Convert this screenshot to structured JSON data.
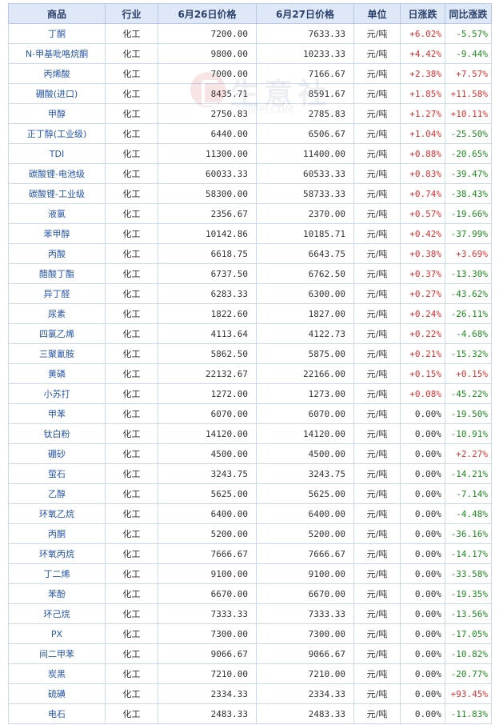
{
  "headers": [
    "商品",
    "行业",
    "6月26日价格",
    "6月27日价格",
    "单位",
    "日涨跌",
    "同比涨跌"
  ],
  "watermark": {
    "text": "生意社",
    "url": "100PPI.COM"
  },
  "rows": [
    {
      "name": "丁酮",
      "industry": "化工",
      "p1": "7200.00",
      "p2": "7633.33",
      "unit": "元/吨",
      "day": "+6.02%",
      "day_dir": "up",
      "yoy": "-5.57%",
      "yoy_dir": "down"
    },
    {
      "name": "N-甲基吡咯烷酮",
      "industry": "化工",
      "p1": "9800.00",
      "p2": "10233.33",
      "unit": "元/吨",
      "day": "+4.42%",
      "day_dir": "up",
      "yoy": "-9.44%",
      "yoy_dir": "down"
    },
    {
      "name": "丙烯酸",
      "industry": "化工",
      "p1": "7000.00",
      "p2": "7166.67",
      "unit": "元/吨",
      "day": "+2.38%",
      "day_dir": "up",
      "yoy": "+7.57%",
      "yoy_dir": "up"
    },
    {
      "name": "硼酸(进口)",
      "industry": "化工",
      "p1": "8435.71",
      "p2": "8591.67",
      "unit": "元/吨",
      "day": "+1.85%",
      "day_dir": "up",
      "yoy": "+11.58%",
      "yoy_dir": "up"
    },
    {
      "name": "甲醇",
      "industry": "化工",
      "p1": "2750.83",
      "p2": "2785.83",
      "unit": "元/吨",
      "day": "+1.27%",
      "day_dir": "up",
      "yoy": "+10.11%",
      "yoy_dir": "up"
    },
    {
      "name": "正丁醇(工业级)",
      "industry": "化工",
      "p1": "6440.00",
      "p2": "6506.67",
      "unit": "元/吨",
      "day": "+1.04%",
      "day_dir": "up",
      "yoy": "-25.50%",
      "yoy_dir": "down"
    },
    {
      "name": "TDI",
      "industry": "化工",
      "p1": "11300.00",
      "p2": "11400.00",
      "unit": "元/吨",
      "day": "+0.88%",
      "day_dir": "up",
      "yoy": "-20.65%",
      "yoy_dir": "down"
    },
    {
      "name": "碳酸锂-电池级",
      "industry": "化工",
      "p1": "60033.33",
      "p2": "60533.33",
      "unit": "元/吨",
      "day": "+0.83%",
      "day_dir": "up",
      "yoy": "-39.47%",
      "yoy_dir": "down"
    },
    {
      "name": "碳酸锂-工业级",
      "industry": "化工",
      "p1": "58300.00",
      "p2": "58733.33",
      "unit": "元/吨",
      "day": "+0.74%",
      "day_dir": "up",
      "yoy": "-38.43%",
      "yoy_dir": "down"
    },
    {
      "name": "液氯",
      "industry": "化工",
      "p1": "2356.67",
      "p2": "2370.00",
      "unit": "元/吨",
      "day": "+0.57%",
      "day_dir": "up",
      "yoy": "-19.66%",
      "yoy_dir": "down"
    },
    {
      "name": "苯甲醇",
      "industry": "化工",
      "p1": "10142.86",
      "p2": "10185.71",
      "unit": "元/吨",
      "day": "+0.42%",
      "day_dir": "up",
      "yoy": "-37.99%",
      "yoy_dir": "down"
    },
    {
      "name": "丙酸",
      "industry": "化工",
      "p1": "6618.75",
      "p2": "6643.75",
      "unit": "元/吨",
      "day": "+0.38%",
      "day_dir": "up",
      "yoy": "+3.69%",
      "yoy_dir": "up"
    },
    {
      "name": "醋酸丁酯",
      "industry": "化工",
      "p1": "6737.50",
      "p2": "6762.50",
      "unit": "元/吨",
      "day": "+0.37%",
      "day_dir": "up",
      "yoy": "-13.30%",
      "yoy_dir": "down"
    },
    {
      "name": "异丁醛",
      "industry": "化工",
      "p1": "6283.33",
      "p2": "6300.00",
      "unit": "元/吨",
      "day": "+0.27%",
      "day_dir": "up",
      "yoy": "-43.62%",
      "yoy_dir": "down"
    },
    {
      "name": "尿素",
      "industry": "化工",
      "p1": "1822.60",
      "p2": "1827.00",
      "unit": "元/吨",
      "day": "+0.24%",
      "day_dir": "up",
      "yoy": "-26.11%",
      "yoy_dir": "down"
    },
    {
      "name": "四氯乙烯",
      "industry": "化工",
      "p1": "4113.64",
      "p2": "4122.73",
      "unit": "元/吨",
      "day": "+0.22%",
      "day_dir": "up",
      "yoy": "-4.68%",
      "yoy_dir": "down"
    },
    {
      "name": "三聚氰胺",
      "industry": "化工",
      "p1": "5862.50",
      "p2": "5875.00",
      "unit": "元/吨",
      "day": "+0.21%",
      "day_dir": "up",
      "yoy": "-15.32%",
      "yoy_dir": "down"
    },
    {
      "name": "黄磷",
      "industry": "化工",
      "p1": "22132.67",
      "p2": "22166.00",
      "unit": "元/吨",
      "day": "+0.15%",
      "day_dir": "up",
      "yoy": "+0.15%",
      "yoy_dir": "up"
    },
    {
      "name": "小苏打",
      "industry": "化工",
      "p1": "1272.00",
      "p2": "1273.00",
      "unit": "元/吨",
      "day": "+0.08%",
      "day_dir": "up",
      "yoy": "-45.22%",
      "yoy_dir": "down"
    },
    {
      "name": "甲苯",
      "industry": "化工",
      "p1": "6070.00",
      "p2": "6070.00",
      "unit": "元/吨",
      "day": "0.00%",
      "day_dir": "flat",
      "yoy": "-19.50%",
      "yoy_dir": "down"
    },
    {
      "name": "钛白粉",
      "industry": "化工",
      "p1": "14120.00",
      "p2": "14120.00",
      "unit": "元/吨",
      "day": "0.00%",
      "day_dir": "flat",
      "yoy": "-10.91%",
      "yoy_dir": "down"
    },
    {
      "name": "硼砂",
      "industry": "化工",
      "p1": "4500.00",
      "p2": "4500.00",
      "unit": "元/吨",
      "day": "0.00%",
      "day_dir": "flat",
      "yoy": "+2.27%",
      "yoy_dir": "up"
    },
    {
      "name": "萤石",
      "industry": "化工",
      "p1": "3243.75",
      "p2": "3243.75",
      "unit": "元/吨",
      "day": "0.00%",
      "day_dir": "flat",
      "yoy": "-14.21%",
      "yoy_dir": "down"
    },
    {
      "name": "乙醇",
      "industry": "化工",
      "p1": "5625.00",
      "p2": "5625.00",
      "unit": "元/吨",
      "day": "0.00%",
      "day_dir": "flat",
      "yoy": "-7.14%",
      "yoy_dir": "down"
    },
    {
      "name": "环氧乙烷",
      "industry": "化工",
      "p1": "6400.00",
      "p2": "6400.00",
      "unit": "元/吨",
      "day": "0.00%",
      "day_dir": "flat",
      "yoy": "-4.48%",
      "yoy_dir": "down"
    },
    {
      "name": "丙酮",
      "industry": "化工",
      "p1": "5200.00",
      "p2": "5200.00",
      "unit": "元/吨",
      "day": "0.00%",
      "day_dir": "flat",
      "yoy": "-36.16%",
      "yoy_dir": "down"
    },
    {
      "name": "环氧丙烷",
      "industry": "化工",
      "p1": "7666.67",
      "p2": "7666.67",
      "unit": "元/吨",
      "day": "0.00%",
      "day_dir": "flat",
      "yoy": "-14.17%",
      "yoy_dir": "down"
    },
    {
      "name": "丁二烯",
      "industry": "化工",
      "p1": "9100.00",
      "p2": "9100.00",
      "unit": "元/吨",
      "day": "0.00%",
      "day_dir": "flat",
      "yoy": "-33.58%",
      "yoy_dir": "down"
    },
    {
      "name": "苯酚",
      "industry": "化工",
      "p1": "6670.00",
      "p2": "6670.00",
      "unit": "元/吨",
      "day": "0.00%",
      "day_dir": "flat",
      "yoy": "-19.35%",
      "yoy_dir": "down"
    },
    {
      "name": "环己烷",
      "industry": "化工",
      "p1": "7333.33",
      "p2": "7333.33",
      "unit": "元/吨",
      "day": "0.00%",
      "day_dir": "flat",
      "yoy": "-13.56%",
      "yoy_dir": "down"
    },
    {
      "name": "PX",
      "industry": "化工",
      "p1": "7300.00",
      "p2": "7300.00",
      "unit": "元/吨",
      "day": "0.00%",
      "day_dir": "flat",
      "yoy": "-17.05%",
      "yoy_dir": "down"
    },
    {
      "name": "间二甲苯",
      "industry": "化工",
      "p1": "9066.67",
      "p2": "9066.67",
      "unit": "元/吨",
      "day": "0.00%",
      "day_dir": "flat",
      "yoy": "-10.82%",
      "yoy_dir": "down"
    },
    {
      "name": "炭黑",
      "industry": "化工",
      "p1": "7210.00",
      "p2": "7210.00",
      "unit": "元/吨",
      "day": "0.00%",
      "day_dir": "flat",
      "yoy": "-20.77%",
      "yoy_dir": "down"
    },
    {
      "name": "硫磺",
      "industry": "化工",
      "p1": "2334.33",
      "p2": "2334.33",
      "unit": "元/吨",
      "day": "0.00%",
      "day_dir": "flat",
      "yoy": "+93.45%",
      "yoy_dir": "up"
    },
    {
      "name": "电石",
      "industry": "化工",
      "p1": "2483.33",
      "p2": "2483.33",
      "unit": "元/吨",
      "day": "0.00%",
      "day_dir": "flat",
      "yoy": "-11.83%",
      "yoy_dir": "down"
    }
  ]
}
